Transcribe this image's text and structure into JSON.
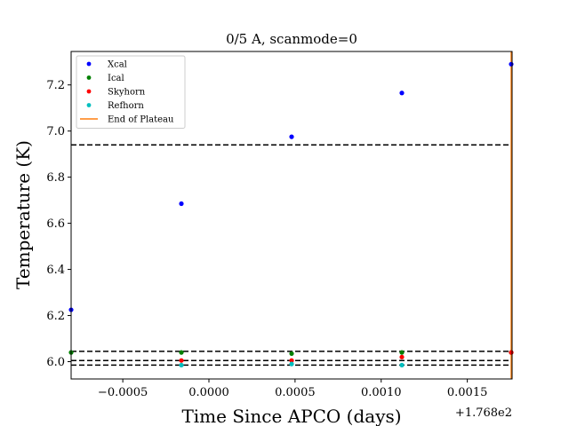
{
  "chart_data": {
    "type": "scatter",
    "title": "0/5 A, scanmode=0",
    "xlabel": "Time Since APCO (days)",
    "ylabel": "Temperature (K)",
    "x_offset_label": "+1.768e2",
    "xlim": [
      -0.0008,
      0.00176
    ],
    "ylim": [
      5.925,
      7.345
    ],
    "xticks": [
      -0.0005,
      0.0,
      0.0005,
      0.001,
      0.0015
    ],
    "xtick_labels": [
      "−0.0005",
      "0.0000",
      "0.0005",
      "0.0010",
      "0.0015"
    ],
    "yticks": [
      6.0,
      6.2,
      6.4,
      6.6,
      6.8,
      7.0,
      7.2
    ],
    "ytick_labels": [
      "6.0",
      "6.2",
      "6.4",
      "6.6",
      "6.8",
      "7.0",
      "7.2"
    ],
    "legend_position": "upper-left",
    "grid": false,
    "series": [
      {
        "name": "Xcal",
        "color": "#0000ff",
        "x": [
          -0.0008,
          -0.00016,
          0.00048,
          0.00112,
          0.00176
        ],
        "y": [
          6.225,
          6.685,
          6.975,
          7.165,
          7.29
        ]
      },
      {
        "name": "Ical",
        "color": "#008000",
        "x": [
          -0.0008,
          -0.00016,
          0.00048,
          0.00112,
          0.00176
        ],
        "y": [
          6.04,
          6.04,
          6.035,
          6.04,
          6.04
        ]
      },
      {
        "name": "Skyhorn",
        "color": "#ff0000",
        "x": [
          -0.00016,
          0.00048,
          0.00112,
          0.00176
        ],
        "y": [
          6.005,
          6.005,
          6.02,
          6.04
        ]
      },
      {
        "name": "Refhorn",
        "color": "#00bfbf",
        "x": [
          -0.00016,
          0.00048,
          0.00112
        ],
        "y": [
          5.985,
          5.99,
          5.985
        ]
      }
    ],
    "end_of_plateau": {
      "name": "End of Plateau",
      "color": "#ff7f0e",
      "x": 0.00176
    },
    "hlines": [
      6.94,
      6.045,
      6.005,
      5.985
    ]
  }
}
